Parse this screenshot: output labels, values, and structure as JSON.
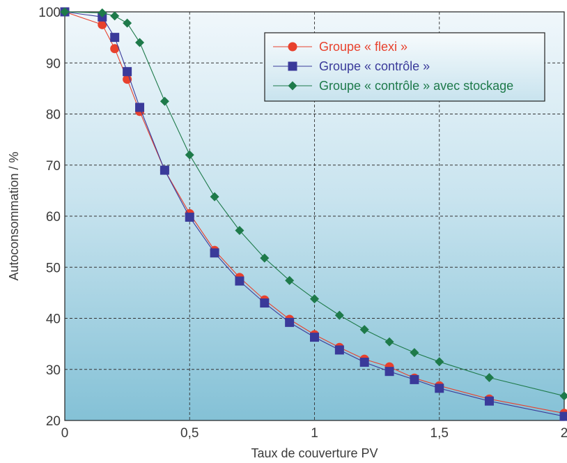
{
  "chart_data": {
    "type": "line",
    "xlabel": "Taux de couverture PV",
    "ylabel": "Autoconsommation / %",
    "xlim": [
      0,
      2
    ],
    "ylim": [
      20,
      100
    ],
    "x_ticks": [
      0,
      0.5,
      1,
      1.5,
      2
    ],
    "x_tick_labels": [
      "0",
      "0,5",
      "1",
      "1,5",
      "2"
    ],
    "y_ticks": [
      20,
      30,
      40,
      50,
      60,
      70,
      80,
      90,
      100
    ],
    "y_tick_labels": [
      "20",
      "30",
      "40",
      "50",
      "60",
      "70",
      "80",
      "90",
      "100"
    ],
    "grid": true,
    "legend_position": "top-right",
    "series": [
      {
        "name": "Groupe « flexi »",
        "color": "#e8412d",
        "marker": "circle",
        "points": [
          [
            0,
            100
          ],
          [
            0.15,
            97.5
          ],
          [
            0.2,
            92.8
          ],
          [
            0.25,
            86.8
          ],
          [
            0.3,
            80.5
          ],
          [
            0.4,
            69
          ],
          [
            0.5,
            60.5
          ],
          [
            0.6,
            53.3
          ],
          [
            0.7,
            48
          ],
          [
            0.8,
            43.6
          ],
          [
            0.9,
            39.8
          ],
          [
            1.0,
            36.8
          ],
          [
            1.1,
            34.3
          ],
          [
            1.2,
            32
          ],
          [
            1.3,
            30.5
          ],
          [
            1.4,
            28.3
          ],
          [
            1.5,
            26.8
          ],
          [
            1.7,
            24.2
          ],
          [
            2.0,
            21.4
          ]
        ]
      },
      {
        "name": "Groupe « contrôle »",
        "color": "#3a3a9a",
        "marker": "square",
        "points": [
          [
            0,
            100
          ],
          [
            0.15,
            99
          ],
          [
            0.2,
            95
          ],
          [
            0.25,
            88.3
          ],
          [
            0.3,
            81.3
          ],
          [
            0.4,
            69
          ],
          [
            0.5,
            59.8
          ],
          [
            0.6,
            52.8
          ],
          [
            0.7,
            47.3
          ],
          [
            0.8,
            43
          ],
          [
            0.9,
            39.2
          ],
          [
            1.0,
            36.3
          ],
          [
            1.1,
            33.8
          ],
          [
            1.2,
            31.4
          ],
          [
            1.3,
            29.6
          ],
          [
            1.4,
            28
          ],
          [
            1.5,
            26.3
          ],
          [
            1.7,
            23.8
          ],
          [
            2.0,
            20.8
          ]
        ]
      },
      {
        "name": "Groupe « contrôle » avec stockage",
        "color": "#1e7a4a",
        "marker": "diamond",
        "points": [
          [
            0,
            100
          ],
          [
            0.15,
            99.8
          ],
          [
            0.2,
            99.2
          ],
          [
            0.25,
            97.8
          ],
          [
            0.3,
            94
          ],
          [
            0.4,
            82.5
          ],
          [
            0.5,
            72
          ],
          [
            0.6,
            63.8
          ],
          [
            0.7,
            57.2
          ],
          [
            0.8,
            51.8
          ],
          [
            0.9,
            47.4
          ],
          [
            1.0,
            43.8
          ],
          [
            1.1,
            40.6
          ],
          [
            1.2,
            37.8
          ],
          [
            1.3,
            35.4
          ],
          [
            1.4,
            33.3
          ],
          [
            1.5,
            31.5
          ],
          [
            1.7,
            28.4
          ],
          [
            2.0,
            24.8
          ]
        ]
      }
    ]
  }
}
